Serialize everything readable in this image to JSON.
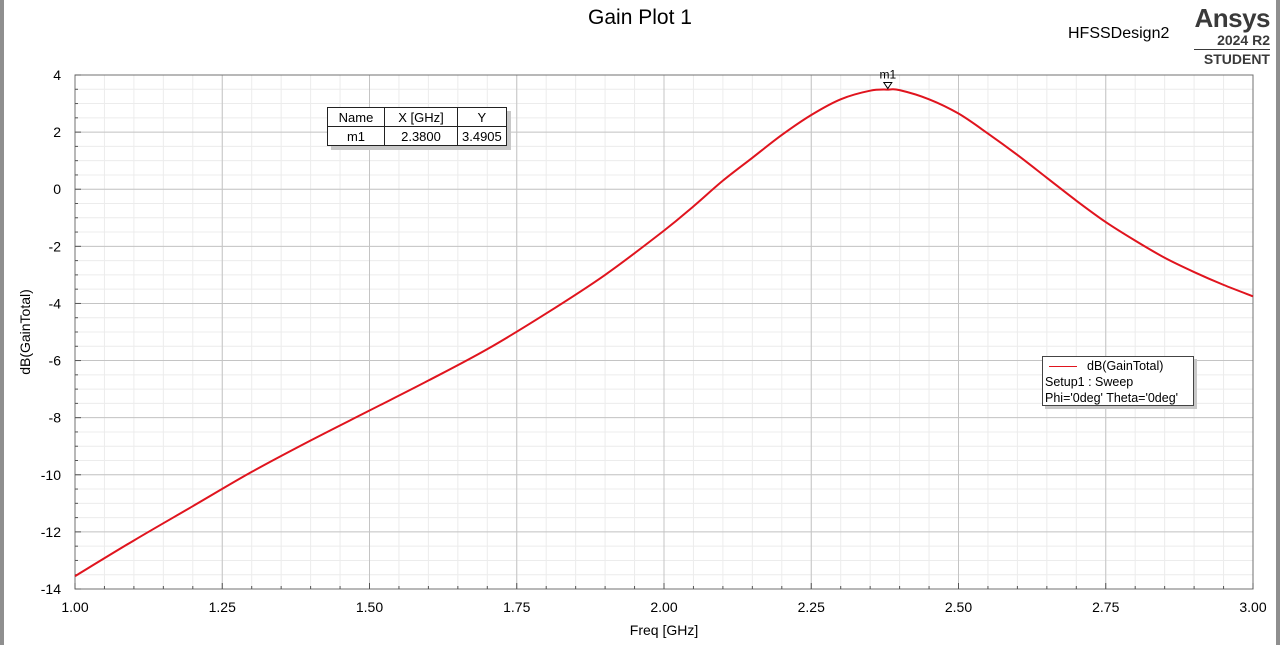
{
  "header": {
    "title": "Gain Plot 1",
    "design_name": "HFSSDesign2",
    "brand": "Ansys",
    "version": "2024 R2",
    "edition": "STUDENT"
  },
  "marker_table": {
    "headers": [
      "Name",
      "X [GHz]",
      "Y"
    ],
    "rows": [
      [
        "m1",
        "2.3800",
        "3.4905"
      ]
    ]
  },
  "legend": {
    "entry": "dB(GainTotal)",
    "line2": "Setup1 : Sweep",
    "line3": "Phi='0deg' Theta='0deg'"
  },
  "chart_data": {
    "type": "line",
    "title": "Gain Plot 1",
    "xlabel": "Freq [GHz]",
    "ylabel": "dB(GainTotal)",
    "xlim": [
      1.0,
      3.0
    ],
    "ylim": [
      -14,
      4
    ],
    "x_ticks": [
      "1.00",
      "1.25",
      "1.50",
      "1.75",
      "2.00",
      "2.25",
      "2.50",
      "2.75",
      "3.00"
    ],
    "y_ticks": [
      "4",
      "2",
      "0",
      "-2",
      "-4",
      "-6",
      "-8",
      "-10",
      "-12",
      "-14"
    ],
    "grid": true,
    "legend_position": "right",
    "series": [
      {
        "name": "dB(GainTotal)",
        "color": "#e0141e",
        "x": [
          1.0,
          1.1,
          1.2,
          1.3,
          1.4,
          1.5,
          1.6,
          1.7,
          1.8,
          1.9,
          2.0,
          2.05,
          2.1,
          2.15,
          2.2,
          2.25,
          2.3,
          2.35,
          2.38,
          2.4,
          2.45,
          2.5,
          2.55,
          2.6,
          2.65,
          2.7,
          2.75,
          2.8,
          2.85,
          2.9,
          2.95,
          3.0
        ],
        "values": [
          -13.55,
          -12.3,
          -11.1,
          -9.9,
          -8.8,
          -7.75,
          -6.7,
          -5.6,
          -4.35,
          -3.0,
          -1.45,
          -0.6,
          0.3,
          1.1,
          1.9,
          2.6,
          3.15,
          3.45,
          3.49,
          3.47,
          3.15,
          2.65,
          1.95,
          1.2,
          0.4,
          -0.4,
          -1.15,
          -1.8,
          -2.4,
          -2.9,
          -3.35,
          -3.75
        ]
      }
    ],
    "markers": [
      {
        "name": "m1",
        "x": 2.38,
        "y": 3.4905
      }
    ]
  }
}
